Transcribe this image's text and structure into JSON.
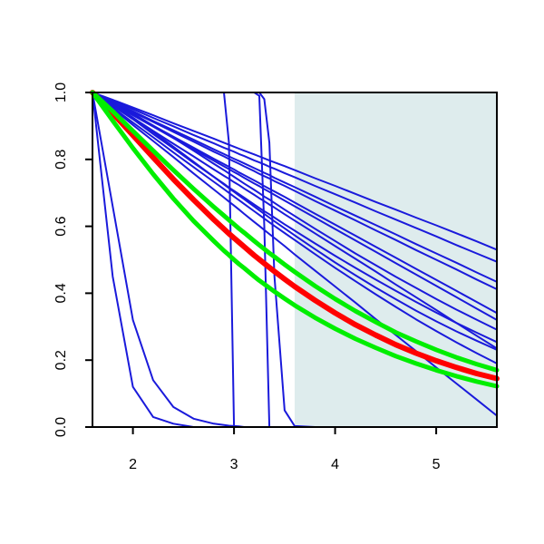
{
  "chart_data": {
    "type": "line",
    "title": "",
    "xlabel": "",
    "ylabel": "",
    "xlim": [
      1.6,
      5.6
    ],
    "ylim": [
      0.0,
      1.0
    ],
    "x_ticks": [
      2,
      3,
      4,
      5
    ],
    "x_tick_labels": [
      "2",
      "3",
      "4",
      "5"
    ],
    "y_ticks": [
      0.0,
      0.2,
      0.4,
      0.6,
      0.8,
      1.0
    ],
    "y_tick_labels": [
      "0.0",
      "0.2",
      "0.4",
      "0.6",
      "0.8",
      "1.0"
    ],
    "grid": false,
    "legend": "none",
    "colors": {
      "thin_series": "#1a1adb",
      "highlight_red": "#ff0000",
      "highlight_green": "#00ee00",
      "shaded_region": "#deeced"
    },
    "shaded_region": {
      "x_start": 3.6,
      "x_end": 5.6
    },
    "x": [
      1.6,
      1.8,
      2.0,
      2.2,
      2.4,
      2.6,
      2.8,
      2.9,
      2.95,
      3.0,
      3.05,
      3.1,
      3.2,
      3.25,
      3.3,
      3.35,
      3.4,
      3.5,
      3.6,
      3.8,
      4.0,
      4.2,
      4.4,
      4.6,
      4.8,
      5.0,
      5.2,
      5.4,
      5.6
    ],
    "series": [
      {
        "style": "thin",
        "values": [
          1.0,
          0.45,
          0.12,
          0.03,
          0.01,
          0.0,
          0.0,
          0.0,
          0.0,
          0.0,
          0.0,
          0.0,
          0.0,
          0.0,
          0.0,
          0.0,
          0.0,
          0.0,
          0.0,
          0.0,
          0.0,
          0.0,
          0.0,
          0.0,
          0.0,
          0.0,
          0.0,
          0.0,
          0.0
        ]
      },
      {
        "style": "thin",
        "values": [
          1.0,
          0.66,
          0.32,
          0.14,
          0.06,
          0.025,
          0.01,
          0.006,
          0.004,
          0.003,
          0.002,
          0.0,
          0.0,
          0.0,
          0.0,
          0.0,
          0.0,
          0.0,
          0.0,
          0.0,
          0.0,
          0.0,
          0.0,
          0.0,
          0.0,
          0.0,
          0.0,
          0.0,
          0.0
        ]
      },
      {
        "style": "thin",
        "values": [
          1.0,
          1.0,
          1.0,
          1.0,
          1.0,
          1.0,
          1.0,
          1.0,
          0.85,
          0.0,
          0.0,
          0.0,
          0.0,
          0.0,
          0.0,
          0.0,
          0.0,
          0.0,
          0.0,
          0.0,
          0.0,
          0.0,
          0.0,
          0.0,
          0.0,
          0.0,
          0.0,
          0.0,
          0.0
        ]
      },
      {
        "style": "thin",
        "values": [
          1.0,
          1.0,
          1.0,
          1.0,
          1.0,
          1.0,
          1.0,
          1.0,
          1.0,
          1.0,
          1.0,
          1.0,
          1.0,
          0.99,
          0.6,
          0.0,
          0.0,
          0.0,
          0.0,
          0.0,
          0.0,
          0.0,
          0.0,
          0.0,
          0.0,
          0.0,
          0.0,
          0.0,
          0.0
        ]
      },
      {
        "style": "thin",
        "values": [
          1.0,
          1.0,
          1.0,
          1.0,
          1.0,
          1.0,
          1.0,
          1.0,
          1.0,
          1.0,
          1.0,
          1.0,
          1.0,
          1.0,
          0.98,
          0.85,
          0.45,
          0.05,
          0.003,
          0.0,
          0.0,
          0.0,
          0.0,
          0.0,
          0.0,
          0.0,
          0.0,
          0.0,
          0.0
        ]
      },
      {
        "style": "thin",
        "values": [
          1.0,
          0.952,
          0.903,
          0.855,
          0.807,
          0.758,
          0.71,
          0.686,
          0.674,
          0.662,
          0.65,
          0.637,
          0.613,
          0.601,
          0.589,
          0.577,
          0.565,
          0.541,
          0.516,
          0.468,
          0.42,
          0.372,
          0.323,
          0.275,
          0.227,
          0.178,
          0.13,
          0.082,
          0.034
        ]
      },
      {
        "style": "thin",
        "values": [
          1.0,
          0.97,
          0.937,
          0.901,
          0.864,
          0.826,
          0.787,
          0.768,
          0.758,
          0.748,
          0.738,
          0.728,
          0.709,
          0.699,
          0.689,
          0.68,
          0.67,
          0.65,
          0.631,
          0.593,
          0.556,
          0.519,
          0.484,
          0.449,
          0.416,
          0.383,
          0.351,
          0.321,
          0.291
        ]
      },
      {
        "style": "thin",
        "values": [
          1.0,
          0.96,
          0.92,
          0.876,
          0.833,
          0.79,
          0.748,
          0.727,
          0.716,
          0.706,
          0.696,
          0.686,
          0.665,
          0.655,
          0.645,
          0.636,
          0.626,
          0.606,
          0.587,
          0.549,
          0.512,
          0.476,
          0.441,
          0.407,
          0.374,
          0.342,
          0.311,
          0.282,
          0.254
        ]
      },
      {
        "style": "thin",
        "values": [
          1.0,
          0.965,
          0.925,
          0.882,
          0.838,
          0.793,
          0.748,
          0.725,
          0.714,
          0.703,
          0.692,
          0.681,
          0.659,
          0.648,
          0.637,
          0.626,
          0.615,
          0.594,
          0.573,
          0.532,
          0.492,
          0.454,
          0.417,
          0.382,
          0.348,
          0.316,
          0.286,
          0.258,
          0.231
        ]
      },
      {
        "style": "thin",
        "values": [
          1.0,
          0.955,
          0.91,
          0.866,
          0.821,
          0.777,
          0.733,
          0.711,
          0.7,
          0.689,
          0.678,
          0.667,
          0.645,
          0.634,
          0.623,
          0.612,
          0.601,
          0.58,
          0.559,
          0.517,
          0.476,
          0.436,
          0.397,
          0.359,
          0.322,
          0.287,
          0.253,
          0.221,
          0.19
        ]
      },
      {
        "style": "thin",
        "values": [
          1.0,
          0.967,
          0.934,
          0.901,
          0.868,
          0.835,
          0.802,
          0.786,
          0.778,
          0.77,
          0.761,
          0.753,
          0.737,
          0.729,
          0.72,
          0.712,
          0.704,
          0.688,
          0.671,
          0.638,
          0.605,
          0.572,
          0.539,
          0.506,
          0.473,
          0.44,
          0.407,
          0.374,
          0.341
        ]
      },
      {
        "style": "thin",
        "values": [
          1.0,
          0.966,
          0.932,
          0.898,
          0.864,
          0.83,
          0.796,
          0.779,
          0.771,
          0.762,
          0.754,
          0.745,
          0.728,
          0.72,
          0.711,
          0.703,
          0.694,
          0.677,
          0.66,
          0.626,
          0.592,
          0.558,
          0.524,
          0.49,
          0.456,
          0.422,
          0.388,
          0.354,
          0.32
        ]
      },
      {
        "style": "thin",
        "values": [
          1.0,
          0.971,
          0.941,
          0.912,
          0.882,
          0.853,
          0.823,
          0.809,
          0.801,
          0.794,
          0.787,
          0.779,
          0.765,
          0.757,
          0.75,
          0.743,
          0.735,
          0.721,
          0.706,
          0.676,
          0.647,
          0.618,
          0.588,
          0.559,
          0.529,
          0.5,
          0.471,
          0.441,
          0.412
        ]
      },
      {
        "style": "thin",
        "values": [
          1.0,
          0.975,
          0.95,
          0.924,
          0.899,
          0.873,
          0.848,
          0.835,
          0.829,
          0.823,
          0.816,
          0.81,
          0.797,
          0.791,
          0.785,
          0.778,
          0.772,
          0.759,
          0.747,
          0.721,
          0.696,
          0.671,
          0.645,
          0.62,
          0.595,
          0.57,
          0.544,
          0.519,
          0.494
        ]
      },
      {
        "style": "thin",
        "values": [
          1.0,
          0.978,
          0.955,
          0.932,
          0.908,
          0.885,
          0.862,
          0.85,
          0.844,
          0.838,
          0.832,
          0.826,
          0.815,
          0.809,
          0.803,
          0.797,
          0.791,
          0.78,
          0.768,
          0.744,
          0.721,
          0.697,
          0.673,
          0.65,
          0.626,
          0.603,
          0.579,
          0.555,
          0.53
        ]
      },
      {
        "style": "thin",
        "values": [
          1.0,
          0.972,
          0.944,
          0.915,
          0.887,
          0.859,
          0.83,
          0.816,
          0.809,
          0.802,
          0.795,
          0.788,
          0.774,
          0.767,
          0.76,
          0.753,
          0.745,
          0.731,
          0.717,
          0.689,
          0.66,
          0.632,
          0.604,
          0.576,
          0.547,
          0.519,
          0.491,
          0.462,
          0.434
        ]
      },
      {
        "style": "thin",
        "values": [
          1.0,
          0.962,
          0.924,
          0.885,
          0.847,
          0.809,
          0.77,
          0.751,
          0.742,
          0.732,
          0.723,
          0.713,
          0.694,
          0.684,
          0.675,
          0.665,
          0.656,
          0.636,
          0.617,
          0.579,
          0.541,
          0.503,
          0.465,
          0.426,
          0.388,
          0.35,
          0.311,
          0.273,
          0.235
        ]
      },
      {
        "style": "red",
        "values": [
          1.0,
          0.938,
          0.872,
          0.806,
          0.741,
          0.679,
          0.62,
          0.592,
          0.578,
          0.565,
          0.552,
          0.539,
          0.513,
          0.501,
          0.489,
          0.477,
          0.465,
          0.442,
          0.42,
          0.379,
          0.341,
          0.306,
          0.275,
          0.246,
          0.221,
          0.198,
          0.178,
          0.16,
          0.145
        ]
      },
      {
        "style": "green",
        "values": [
          1.0,
          0.944,
          0.885,
          0.826,
          0.768,
          0.712,
          0.658,
          0.632,
          0.619,
          0.606,
          0.593,
          0.581,
          0.556,
          0.544,
          0.532,
          0.52,
          0.509,
          0.486,
          0.464,
          0.422,
          0.383,
          0.347,
          0.314,
          0.283,
          0.256,
          0.231,
          0.208,
          0.188,
          0.17
        ]
      },
      {
        "style": "green",
        "values": [
          1.0,
          0.916,
          0.834,
          0.756,
          0.683,
          0.616,
          0.556,
          0.527,
          0.514,
          0.5,
          0.487,
          0.475,
          0.45,
          0.438,
          0.427,
          0.416,
          0.405,
          0.384,
          0.364,
          0.327,
          0.294,
          0.264,
          0.237,
          0.212,
          0.19,
          0.17,
          0.152,
          0.136,
          0.122
        ]
      }
    ]
  }
}
